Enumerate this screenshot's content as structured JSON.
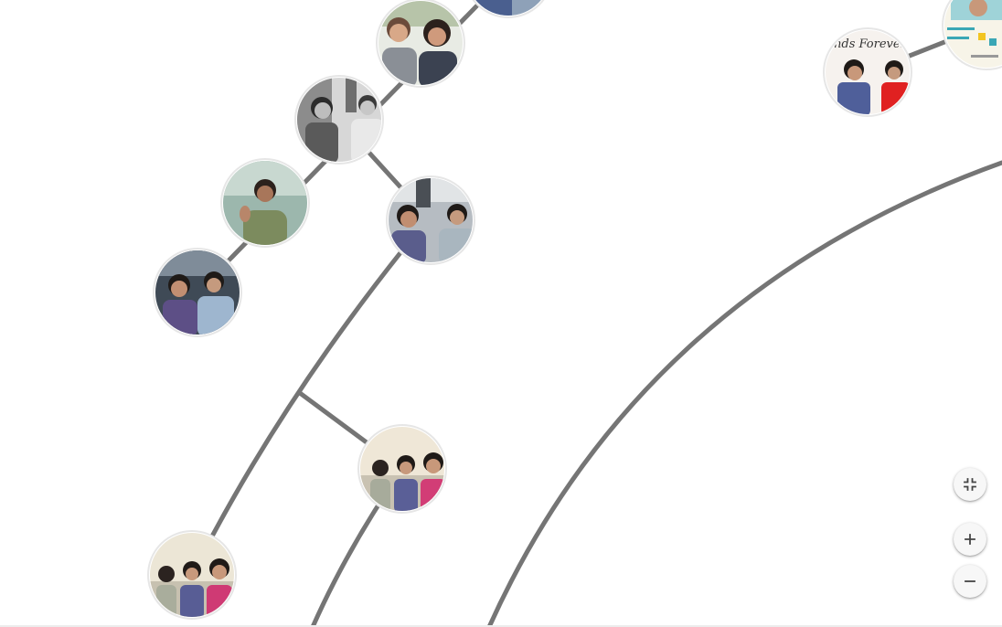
{
  "graph": {
    "edge_color": "#757575",
    "nodes": [
      {
        "id": "photo-node-top-edge",
        "icon": "photo-thumbnail"
      },
      {
        "id": "photo-node-couple-sitting",
        "icon": "photo-thumbnail"
      },
      {
        "id": "photo-node-couple-bw",
        "icon": "photo-thumbnail"
      },
      {
        "id": "photo-node-man-waving",
        "icon": "photo-thumbnail"
      },
      {
        "id": "photo-node-couple-benches",
        "icon": "photo-thumbnail"
      },
      {
        "id": "photo-node-couple-bench",
        "icon": "photo-thumbnail"
      },
      {
        "id": "photo-node-group-selfie",
        "icon": "photo-thumbnail"
      },
      {
        "id": "photo-node-group-selfie-2",
        "icon": "photo-thumbnail"
      },
      {
        "id": "photo-node-friends-forever",
        "icon": "photo-thumbnail"
      },
      {
        "id": "photo-node-card",
        "icon": "photo-thumbnail"
      }
    ]
  },
  "photo_text": {
    "friends_forever": "nds Forever"
  },
  "controls": {
    "collapse_icon": "collapse-icon",
    "zoom_in_icon": "plus-icon",
    "zoom_out_icon": "minus-icon"
  }
}
